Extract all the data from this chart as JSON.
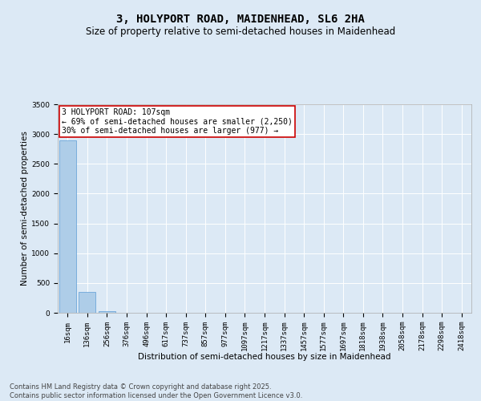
{
  "title": "3, HOLYPORT ROAD, MAIDENHEAD, SL6 2HA",
  "subtitle": "Size of property relative to semi-detached houses in Maidenhead",
  "xlabel": "Distribution of semi-detached houses by size in Maidenhead",
  "ylabel": "Number of semi-detached properties",
  "annotation_line1": "3 HOLYPORT ROAD: 107sqm",
  "annotation_line2": "← 69% of semi-detached houses are smaller (2,250)",
  "annotation_line3": "30% of semi-detached houses are larger (977) →",
  "footer_line1": "Contains HM Land Registry data © Crown copyright and database right 2025.",
  "footer_line2": "Contains public sector information licensed under the Open Government Licence v3.0.",
  "categories": [
    "16sqm",
    "136sqm",
    "256sqm",
    "376sqm",
    "496sqm",
    "617sqm",
    "737sqm",
    "857sqm",
    "977sqm",
    "1097sqm",
    "1217sqm",
    "1337sqm",
    "1457sqm",
    "1577sqm",
    "1697sqm",
    "1818sqm",
    "1938sqm",
    "2058sqm",
    "2178sqm",
    "2298sqm",
    "2418sqm"
  ],
  "values": [
    2900,
    350,
    30,
    5,
    2,
    1,
    1,
    0,
    0,
    0,
    0,
    0,
    0,
    0,
    0,
    0,
    0,
    0,
    0,
    0,
    0
  ],
  "bar_color": "#aecde8",
  "bar_edge_color": "#5b9bd5",
  "background_color": "#dce9f5",
  "plot_bg_color": "#dce9f5",
  "annotation_box_color": "#ffffff",
  "annotation_box_edge": "#cc0000",
  "ylim": [
    0,
    3500
  ],
  "title_fontsize": 10,
  "subtitle_fontsize": 8.5,
  "axis_label_fontsize": 7.5,
  "tick_fontsize": 6.5,
  "annotation_fontsize": 7,
  "footer_fontsize": 6
}
